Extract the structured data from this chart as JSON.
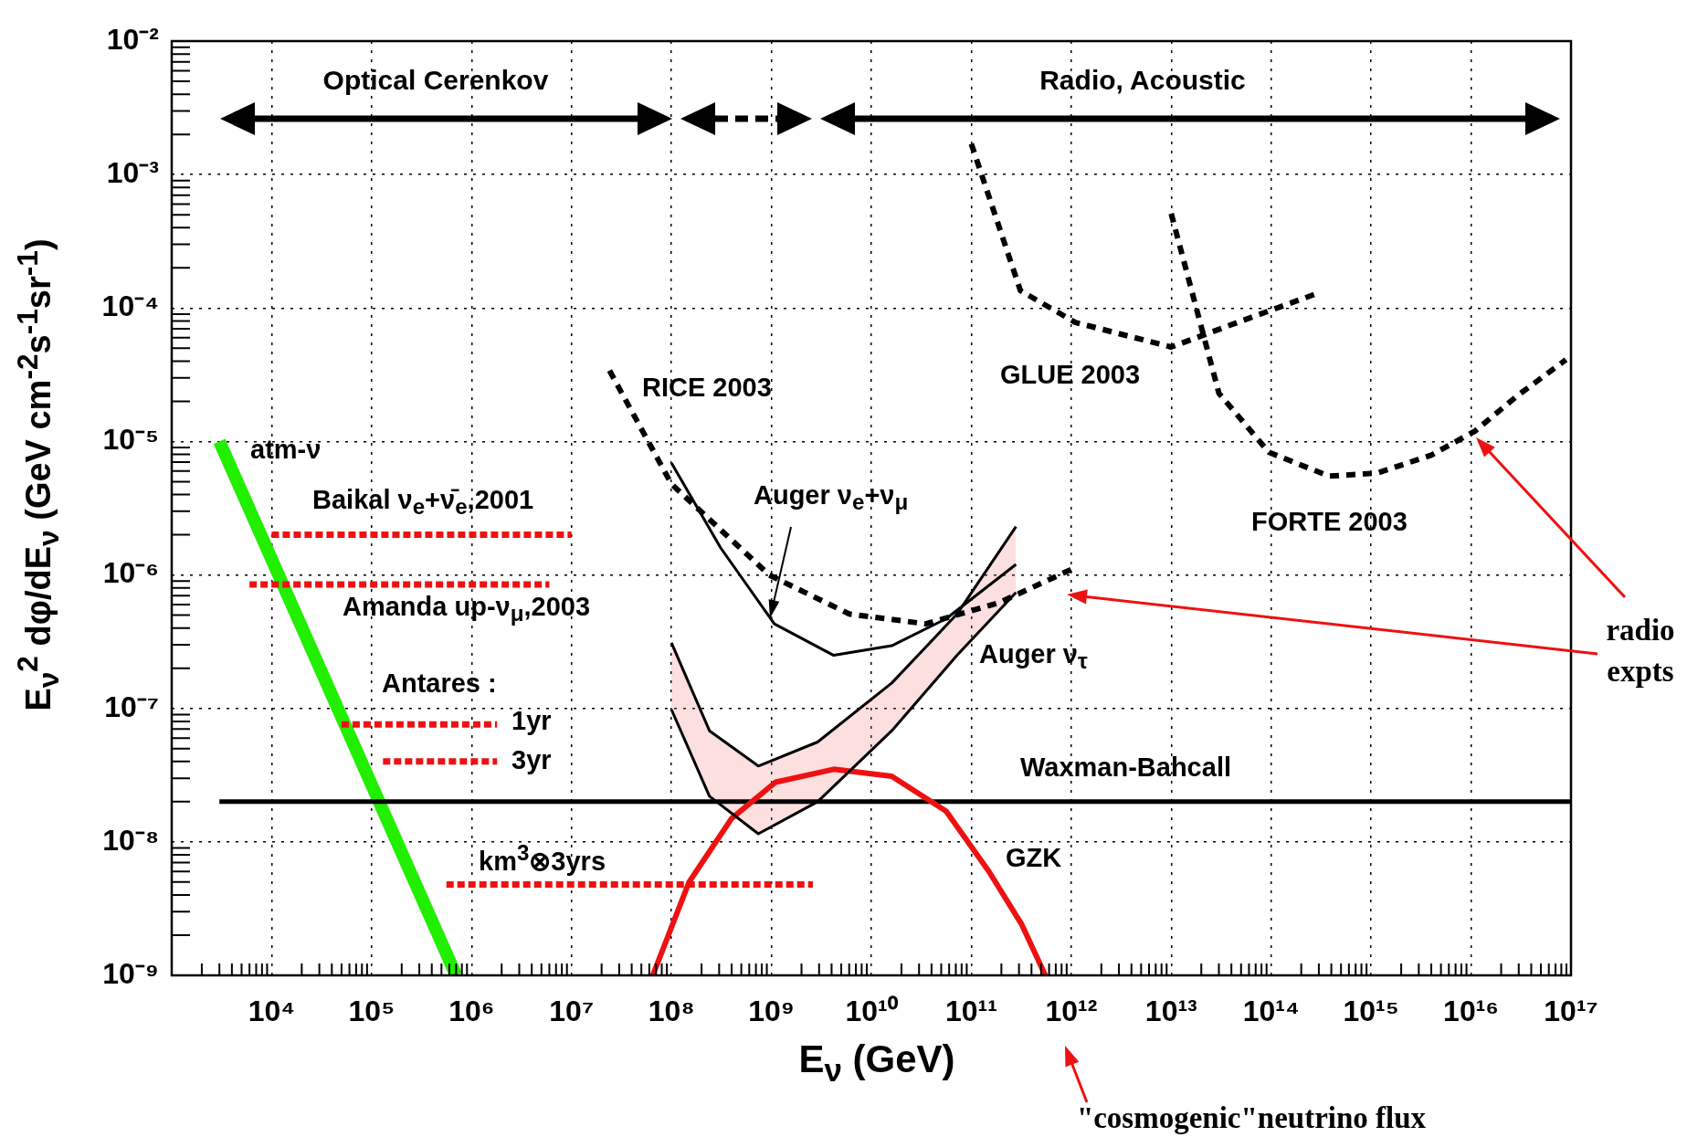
{
  "chart_data": {
    "type": "line",
    "xlabel": "E$_{ν}$  (GeV)",
    "ylabel": "E$_{ν}$$^{2}$ dφ/dE$_{ν}$ (GeV cm$^{-2}$s$^{-1}$sr$^{-1}$)",
    "log": "xy",
    "grid": true,
    "legend": false,
    "marker": "none",
    "xlim": [
      1000.0,
      1e+17
    ],
    "xticks": [
      {
        "value": 10000.0,
        "label": "10⁴"
      },
      {
        "value": 100000.0,
        "label": "10⁵"
      },
      {
        "value": 1000000.0,
        "label": "10⁶"
      },
      {
        "value": 10000000.0,
        "label": "10⁷"
      },
      {
        "value": 100000000.0,
        "label": "10⁸"
      },
      {
        "value": 1000000000.0,
        "label": "10⁹"
      },
      {
        "value": 10000000000.0,
        "label": "10¹⁰"
      },
      {
        "value": 100000000000.0,
        "label": "10¹¹"
      },
      {
        "value": 1000000000000.0,
        "label": "10¹²"
      },
      {
        "value": 10000000000000.0,
        "label": "10¹³"
      },
      {
        "value": 100000000000000.0,
        "label": "10¹⁴"
      },
      {
        "value": 1000000000000000.0,
        "label": "10¹⁵"
      },
      {
        "value": 1e+16,
        "label": "10¹⁶"
      },
      {
        "value": 1e+17,
        "label": "10¹⁷"
      }
    ],
    "ylim": [
      1e-09,
      0.01
    ],
    "yticks": [
      {
        "value": 1e-09,
        "label": "10⁻⁹"
      },
      {
        "value": 1e-08,
        "label": "10⁻⁸"
      },
      {
        "value": 1e-07,
        "label": "10⁻⁷"
      },
      {
        "value": 1e-06,
        "label": "10⁻⁶"
      },
      {
        "value": 1e-05,
        "label": "10⁻⁵"
      },
      {
        "value": 0.0001,
        "label": "10⁻⁴"
      },
      {
        "value": 0.001,
        "label": "10⁻³"
      },
      {
        "value": 0.01,
        "label": "10⁻²"
      }
    ],
    "series": [
      {
        "color": "#22ee00",
        "x": [
          3000.0,
          700000.0
        ],
        "values": [
          1e-05,
          1e-09
        ],
        "line_style": "solid"
      },
      {
        "color": "#ee1111",
        "x": [
          10000.0,
          10000000.0
        ],
        "values": [
          2e-06,
          2e-06
        ],
        "line_style": "dashed"
      },
      {
        "color": "#ee1111",
        "x": [
          6000.0,
          6000000.0
        ],
        "values": [
          8.5e-07,
          8.5e-07
        ],
        "line_style": "dashed"
      },
      {
        "color": "#ee1111",
        "x": [
          50000.0,
          1800000.0
        ],
        "values": [
          7.6e-08,
          7.6e-08
        ],
        "line_style": "dashed"
      },
      {
        "color": "#ee1111",
        "x": [
          130000.0,
          1800000.0
        ],
        "values": [
          4e-08,
          4e-08
        ],
        "line_style": "dashed"
      },
      {
        "color": "#ee1111",
        "x": [
          560000.0,
          2600000000.0
        ],
        "values": [
          4.8e-09,
          4.8e-09
        ],
        "line_style": "dashed"
      },
      {
        "color": "#000000",
        "x": [
          3000.0,
          1e+17
        ],
        "values": [
          2e-08,
          2e-08
        ],
        "line_style": "solid"
      },
      {
        "color": "#ee1111",
        "x": [
          65000000.0,
          150000000.0,
          400000000.0,
          1100000000.0,
          4200000000.0,
          16000000000.0,
          56000000000.0,
          150000000000.0,
          320000000000.0,
          550000000000.0
        ],
        "values": [
          1e-09,
          5e-09,
          1.5e-08,
          2.8e-08,
          3.5e-08,
          3.1e-08,
          1.7e-08,
          6e-09,
          2.4e-09,
          1e-09
        ],
        "line_style": "solid"
      },
      {
        "color": "#000000",
        "x": [
          24000000.0,
          100000000.0,
          950000000.0,
          6000000000.0,
          35000000000.0,
          190000000000.0,
          1000000000000.0
        ],
        "values": [
          3.4e-05,
          4.8e-06,
          1e-06,
          5.1e-07,
          4.3e-07,
          6.2e-07,
          1.1e-06
        ],
        "line_style": "dotted"
      },
      {
        "color": "#000000",
        "x": [
          100000000000.0,
          310000000000.0,
          1100000000000.0,
          10000000000000.0,
          46000000000000.0,
          300000000000000.0
        ],
        "values": [
          0.0017,
          0.000135,
          7.8e-05,
          5.1e-05,
          7.8e-05,
          0.00013
        ],
        "line_style": "dotted"
      },
      {
        "color": "#000000",
        "x": [
          10000000000000.0,
          30000000000000.0,
          95000000000000.0,
          380000000000000.0,
          1150000000000000.0,
          4000000000000000.0,
          1.1e+16,
          2.9e+16,
          8.9e+16
        ],
        "values": [
          0.00051,
          2.3e-05,
          8.3e-06,
          5.5e-06,
          5.8e-06,
          7.9e-06,
          1.2e-05,
          2.2e-05,
          4.1e-05
        ],
        "line_style": "dotted"
      },
      {
        "color": "#000000",
        "x": [
          100000000.0,
          310000000.0,
          1070000000.0,
          4200000000.0,
          16000000000.0,
          56000000000.0,
          280000000000.0
        ],
        "values": [
          6.9e-06,
          1.6e-06,
          4.3e-07,
          2.5e-07,
          2.95e-07,
          4.7e-07,
          1.2e-06
        ],
        "line_style": "solid"
      },
      {
        "color": "#000000",
        "x": [
          100000000.0,
          240000000.0,
          740000000.0,
          2900000000.0,
          16000000000.0,
          72000000000.0,
          280000000000.0
        ],
        "values": [
          3.1e-07,
          6.8e-08,
          3.7e-08,
          5.6e-08,
          1.55e-07,
          5.1e-07,
          2.3e-06
        ],
        "upper": [
          3.1e-07,
          6.8e-08,
          3.7e-08,
          5.6e-08,
          1.55e-07,
          5.1e-07,
          2.3e-06
        ],
        "lower": [
          9.8e-08,
          2.2e-08,
          1.15e-08,
          2e-08,
          6.8e-08,
          2.5e-07,
          7.4e-07
        ],
        "line_style": "solid"
      },
      {
        "color": "#000000",
        "x": [
          100000000.0,
          240000000.0,
          740000000.0,
          2900000000.0,
          16000000000.0,
          72000000000.0,
          280000000000.0
        ],
        "values": [
          9.8e-08,
          2.2e-08,
          1.15e-08,
          2e-08,
          6.8e-08,
          2.5e-07,
          7.4e-07
        ],
        "line_style": "solid"
      }
    ],
    "annotations": [
      "atm-ν",
      "Baikal ν$_{e}$+ν̄$_{e}$,2001",
      "Amanda up-ν$_{μ}$,2003",
      "Antares :",
      "1yr",
      "3yr",
      "km$^{3}$⊗3yrs",
      "RICE 2003",
      "Auger ν$_{e}$+ν$_{μ}$",
      "Auger ν$_{τ}$",
      "Waxman-Bahcall",
      "GZK",
      "GLUE 2003",
      "FORTE 2003",
      "Optical Cerenkov",
      "Radio, Acoustic",
      "radio expts",
      "\"cosmogenic\"neutrino flux"
    ]
  }
}
